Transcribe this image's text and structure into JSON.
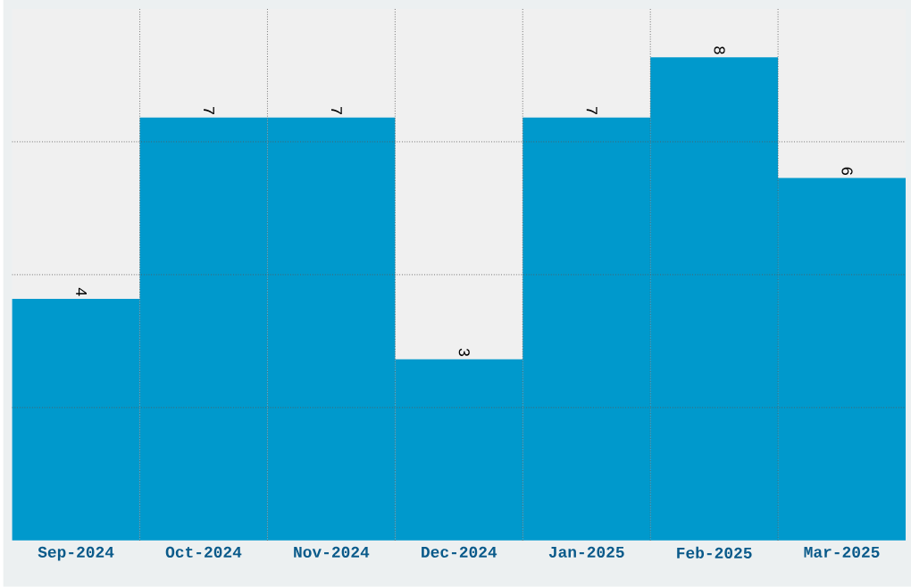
{
  "chart_data": {
    "type": "bar",
    "categories": [
      "Sep-2024",
      "Oct-2024",
      "Nov-2024",
      "Dec-2024",
      "Jan-2025",
      "Feb-2025",
      "Mar-2025"
    ],
    "values": [
      4,
      7,
      7,
      3,
      7,
      8,
      6
    ],
    "color": "#0099cc",
    "ylim": [
      0,
      8.8
    ],
    "yticks": [
      {
        "value": 2.2,
        "label": null
      },
      {
        "value": 4.4,
        "label": null
      },
      {
        "value": 6.6,
        "label": null
      }
    ],
    "tick_labels": "x",
    "grid": true,
    "data_labels": true
  }
}
